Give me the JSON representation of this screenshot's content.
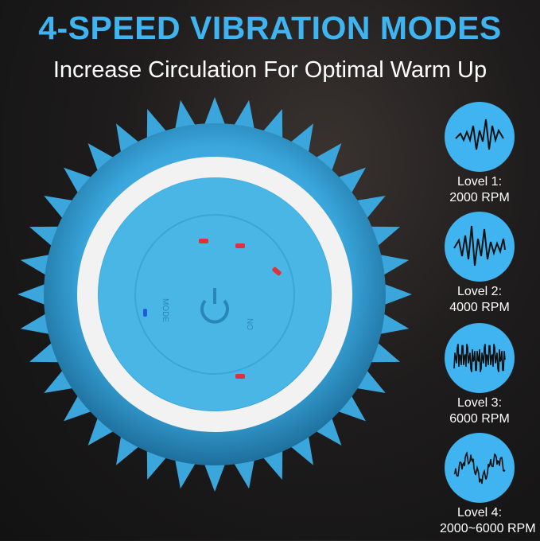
{
  "header": {
    "title": "4-SPEED VIBRATION MODES",
    "subtitle": "Increase Circulation For Optimal Warm Up"
  },
  "colors": {
    "accent": "#3fb4f0",
    "background": "#1e1c1c",
    "ring": "#f2f2f2",
    "indicator_red": "#e0303a",
    "indicator_blue": "#1e5fd8"
  },
  "product": {
    "button_labels": [
      "MODE",
      "ON"
    ]
  },
  "levels": [
    {
      "icon": "sine-wave-icon",
      "line1": "Lovel 1:",
      "line2": "2000 RPM"
    },
    {
      "icon": "spiky-wave-icon",
      "line1": "Lovel 2:",
      "line2": "4000 RPM"
    },
    {
      "icon": "dense-wave-icon",
      "line1": "Lovel 3:",
      "line2": "6000 RPM"
    },
    {
      "icon": "modulated-wave-icon",
      "line1": "Lovel 4:",
      "line2": "2000~6000 RPM"
    }
  ]
}
